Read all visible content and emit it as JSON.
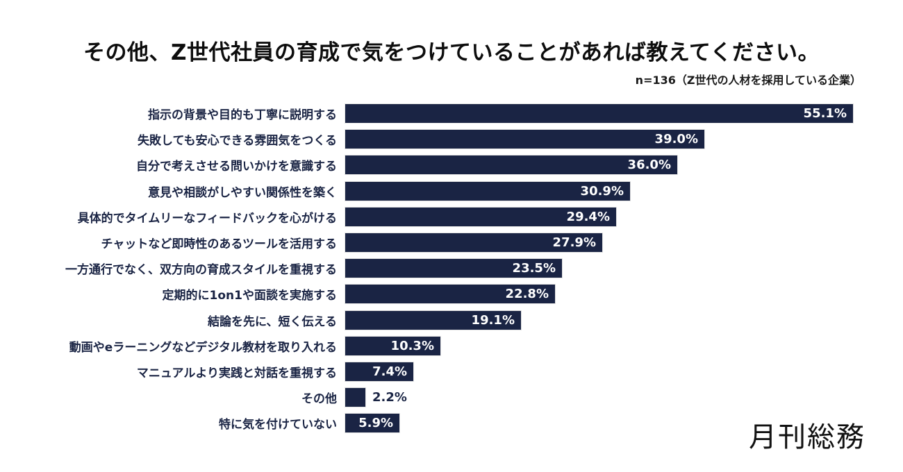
{
  "title": "その他、Z世代社員の育成で気をつけていることがあれば教えてください。",
  "subtitle": "n=136（Z世代の人材を採用している企業）",
  "logo_text": "月刊総務",
  "colors": {
    "bar": "#1a2444",
    "value_label_inside": "#ffffff",
    "value_label_outside": "#1a2444",
    "category_label": "#1a2444",
    "title": "#0d0d0d",
    "background": "#ffffff"
  },
  "chart_data": {
    "type": "bar",
    "orientation": "horizontal",
    "title": "その他、Z世代社員の育成で気をつけていることがあれば教えてください。",
    "subtitle": "n=136（Z世代の人材を採用している企業）",
    "categories": [
      "指示の背景や目的も丁寧に説明する",
      "失敗しても安心できる雰囲気をつくる",
      "自分で考えさせる問いかけを意識する",
      "意見や相談がしやすい関係性を築く",
      "具体的でタイムリーなフィードバックを心がける",
      "チャットなど即時性のあるツールを活用する",
      "一方通行でなく、双方向の育成スタイルを重視する",
      "定期的に1on1や面談を実施する",
      "結論を先に、短く伝える",
      "動画やeラーニングなどデジタル教材を取り入れる",
      "マニュアルより実践と対話を重視する",
      "その他",
      "特に気を付けていない"
    ],
    "values": [
      55.1,
      39.0,
      36.0,
      30.9,
      29.4,
      27.9,
      23.5,
      22.8,
      19.1,
      10.3,
      7.4,
      2.2,
      5.9
    ],
    "unit": "%",
    "xlim": [
      0,
      55.1
    ],
    "grid": false,
    "axes_visible": false,
    "legend": "none",
    "value_labels_shown": true
  }
}
